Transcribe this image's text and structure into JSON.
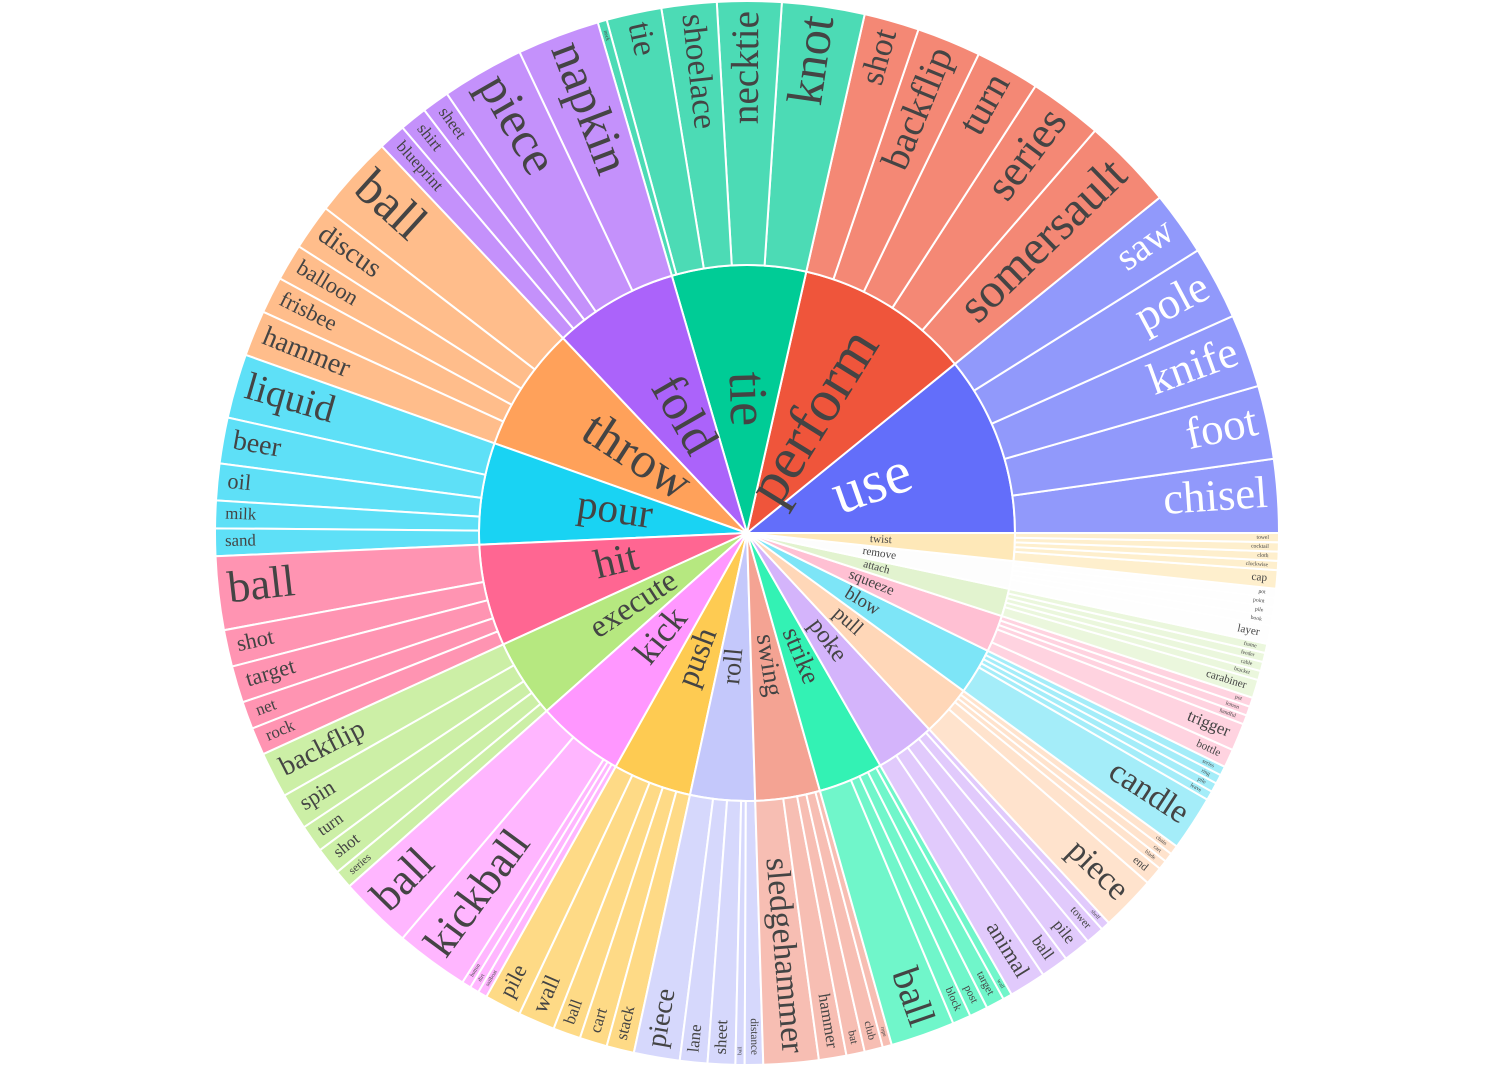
{
  "chart_data": {
    "type": "sunburst",
    "series": [
      {
        "name": "use",
        "color": "#636efa",
        "label_color": "#ffffff",
        "value": 39,
        "labels": [
          "chisel",
          "foot",
          "knife",
          "pole",
          "saw"
        ],
        "values": [
          8,
          8,
          8,
          8,
          7
        ]
      },
      {
        "name": "perform",
        "color": "#ef553b",
        "value": 38,
        "labels": [
          "somersault",
          "series",
          "turn",
          "backflip",
          "shot"
        ],
        "values": [
          10,
          8,
          7,
          7,
          6
        ]
      },
      {
        "name": "tie",
        "color": "#00cc96",
        "value": 29,
        "labels": [
          "knot",
          "necktie",
          "shoelace",
          "tie",
          "neck"
        ],
        "values": [
          9,
          7,
          6,
          6,
          1
        ]
      },
      {
        "name": "fold",
        "color": "#ab63fa",
        "value": 27,
        "labels": [
          "napkin",
          "piece",
          "sheet",
          "shirt",
          "blueprint"
        ],
        "values": [
          9,
          9,
          3,
          3,
          3
        ]
      },
      {
        "name": "throw",
        "color": "#ffa15a",
        "value": 27,
        "labels": [
          "ball",
          "discus",
          "balloon",
          "frisbee",
          "hammer"
        ],
        "values": [
          9,
          5,
          4,
          4,
          5
        ]
      },
      {
        "name": "pour",
        "color": "#19d3f3",
        "value": 22,
        "labels": [
          "liquid",
          "beer",
          "oil",
          "milk",
          "sand"
        ],
        "values": [
          7,
          5,
          4,
          3,
          3
        ]
      },
      {
        "name": "hit",
        "color": "#ff6692",
        "value": 22,
        "labels": [
          "ball",
          "shot",
          "target",
          "net",
          "rock"
        ],
        "values": [
          8,
          4,
          4,
          3,
          3
        ]
      },
      {
        "name": "execute",
        "color": "#b6e880",
        "value": 17,
        "labels": [
          "backflip",
          "spin",
          "turn",
          "shot",
          "series"
        ],
        "values": [
          5,
          4,
          3,
          3,
          2
        ]
      },
      {
        "name": "kick",
        "color": "#ff97ff",
        "value": 19,
        "labels": [
          "ball",
          "kickball",
          "button",
          "dirt",
          "sailboat"
        ],
        "values": [
          8,
          8,
          1,
          1,
          1
        ]
      },
      {
        "name": "push",
        "color": "#fecb52",
        "value": 17,
        "labels": [
          "pile",
          "wall",
          "ball",
          "cart",
          "stack"
        ],
        "values": [
          4,
          4,
          3,
          3,
          3
        ]
      },
      {
        "name": "roll",
        "color": "#c4c8fb",
        "value": 14,
        "labels": [
          "piece",
          "lane",
          "sheet",
          "ball",
          "distance"
        ],
        "values": [
          5,
          3,
          3,
          1,
          2
        ]
      },
      {
        "name": "swing",
        "color": "#f4a393",
        "value": 14,
        "labels": [
          "sledgehammer",
          "hammer",
          "bat",
          "club",
          "rope"
        ],
        "values": [
          6,
          3,
          2,
          2,
          1
        ]
      },
      {
        "name": "strike",
        "color": "#33f2b4",
        "value": 14,
        "labels": [
          "ball",
          "block",
          "post",
          "target",
          "wall"
        ],
        "values": [
          7,
          2,
          2,
          2,
          1
        ]
      },
      {
        "name": "poke",
        "color": "#d4b4fb",
        "value": 13,
        "labels": [
          "animal",
          "ball",
          "pile",
          "tower",
          "shelf"
        ],
        "values": [
          4,
          3,
          3,
          2,
          1
        ]
      },
      {
        "name": "pull",
        "color": "#ffd7b8",
        "value": 11,
        "labels": [
          "piece",
          "end",
          "blade",
          "cart",
          "chain"
        ],
        "values": [
          6,
          2,
          1,
          1,
          1
        ]
      },
      {
        "name": "blow",
        "color": "#7de5f7",
        "value": 10,
        "labels": [
          "candle",
          "leave",
          "pile",
          "ring",
          "series"
        ],
        "values": [
          6,
          1,
          1,
          1,
          1
        ]
      },
      {
        "name": "squeeze",
        "color": "#ffc0d3",
        "value": 8,
        "labels": [
          "bottle",
          "trigger",
          "handful",
          "lemon",
          "pot"
        ],
        "values": [
          2,
          3,
          1,
          1,
          1
        ]
      },
      {
        "name": "attach",
        "color": "#e2f3cf",
        "value": 6,
        "labels": [
          "carabiner",
          "bracket",
          "cable",
          "feeder",
          "frame"
        ],
        "values": [
          2,
          1,
          1,
          1,
          1
        ]
      },
      {
        "name": "remove",
        "color": "#fdfdfd",
        "value": 6,
        "labels": [
          "layer",
          "book",
          "pile",
          "point",
          "pot"
        ],
        "values": [
          2,
          1,
          1,
          1,
          1
        ]
      },
      {
        "name": "twist",
        "color": "#fee8b8",
        "value": 6,
        "labels": [
          "cap",
          "clockwise",
          "cloth",
          "cocktail",
          "towel"
        ],
        "values": [
          2,
          1,
          1,
          1,
          1
        ]
      }
    ]
  }
}
